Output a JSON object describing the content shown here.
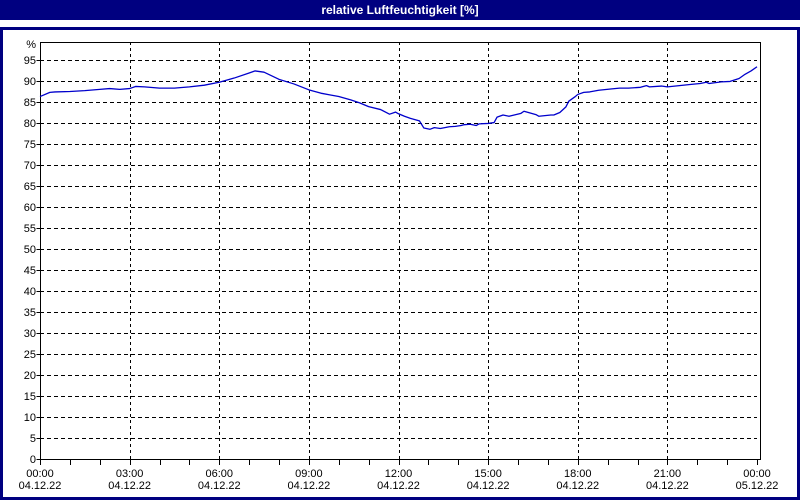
{
  "window": {
    "title": "relative Luftfeuchtigkeit [%]",
    "colors": {
      "title_bar": "#000080",
      "frame_border": "#000080",
      "background": "#ffffff",
      "line": "#0000cc",
      "grid": "#000000",
      "text": "#000000"
    }
  },
  "chart_data": {
    "type": "line",
    "title": "relative Luftfeuchtigkeit [%]",
    "ylabel": "%",
    "xlabel": "",
    "ylim": [
      0,
      95
    ],
    "x_hours_range": [
      0,
      24
    ],
    "grid": "dashed",
    "legend": "none",
    "line_color": "#0000cc",
    "y_axis": {
      "min": 0,
      "max": 95,
      "step": 5,
      "unit_label": "%",
      "tick_labels": [
        "95",
        "90",
        "85",
        "80",
        "75",
        "70",
        "65",
        "60",
        "55",
        "50",
        "45",
        "40",
        "35",
        "30",
        "25",
        "20",
        "15",
        "10",
        "5",
        "0"
      ]
    },
    "x_axis": {
      "major_tick_hours": 3,
      "minor_tick_hours": 1,
      "tick_labels": [
        {
          "hour": 0,
          "time": "00:00",
          "date": "04.12.22"
        },
        {
          "hour": 3,
          "time": "03:00",
          "date": "04.12.22"
        },
        {
          "hour": 6,
          "time": "06:00",
          "date": "04.12.22"
        },
        {
          "hour": 9,
          "time": "09:00",
          "date": "04.12.22"
        },
        {
          "hour": 12,
          "time": "12:00",
          "date": "04.12.22"
        },
        {
          "hour": 15,
          "time": "15:00",
          "date": "04.12.22"
        },
        {
          "hour": 18,
          "time": "18:00",
          "date": "04.12.22"
        },
        {
          "hour": 21,
          "time": "21:00",
          "date": "04.12.22"
        },
        {
          "hour": 24,
          "time": "00:00",
          "date": "05.12.22"
        }
      ]
    },
    "series": [
      {
        "name": "relative Luftfeuchtigkeit [%]",
        "x_hours": [
          0,
          0.33,
          0.5,
          1,
          1.5,
          2,
          2.33,
          2.67,
          3,
          3.2,
          3.5,
          4,
          4.5,
          5,
          5.5,
          6,
          6.5,
          7,
          7.2,
          7.5,
          8,
          8.5,
          9,
          9.4,
          9.7,
          10,
          10.4,
          10.7,
          11,
          11.4,
          11.7,
          11.9,
          12,
          12.2,
          12.4,
          12.55,
          12.7,
          12.85,
          13.05,
          13.2,
          13.4,
          13.55,
          13.7,
          13.9,
          14.1,
          14.2,
          14.4,
          14.6,
          14.7,
          15,
          15.2,
          15.3,
          15.5,
          15.7,
          16.1,
          16.2,
          16.6,
          16.7,
          17.1,
          17.2,
          17.4,
          17.6,
          17.7,
          17.9,
          18,
          18.2,
          18.4,
          18.7,
          19.1,
          19.4,
          19.7,
          20.1,
          20.3,
          20.4,
          20.8,
          21,
          21.4,
          21.8,
          22.1,
          22.3,
          22.4,
          22.8,
          23.1,
          23.4,
          23.6,
          23.8,
          24
        ],
        "values": [
          86.3,
          87.3,
          87.4,
          87.5,
          87.7,
          88.0,
          88.2,
          88.0,
          88.2,
          88.7,
          88.6,
          88.3,
          88.3,
          88.6,
          89.0,
          89.7,
          90.7,
          91.9,
          92.4,
          92.1,
          90.4,
          89.3,
          87.9,
          87.1,
          86.7,
          86.3,
          85.5,
          84.8,
          83.9,
          83.2,
          82.1,
          82.6,
          82.2,
          81.6,
          81.1,
          80.8,
          80.5,
          78.8,
          78.5,
          78.9,
          78.7,
          78.9,
          79.1,
          79.2,
          79.4,
          79.6,
          79.7,
          79.4,
          79.8,
          79.9,
          80.1,
          81.4,
          81.9,
          81.6,
          82.3,
          82.8,
          82.0,
          81.6,
          81.9,
          81.9,
          82.5,
          83.8,
          85.2,
          86.2,
          86.8,
          87.3,
          87.4,
          87.8,
          88.1,
          88.3,
          88.3,
          88.5,
          88.9,
          88.6,
          88.8,
          88.6,
          88.9,
          89.2,
          89.4,
          89.7,
          89.4,
          89.8,
          89.9,
          90.6,
          91.6,
          92.4,
          93.4
        ]
      }
    ]
  }
}
